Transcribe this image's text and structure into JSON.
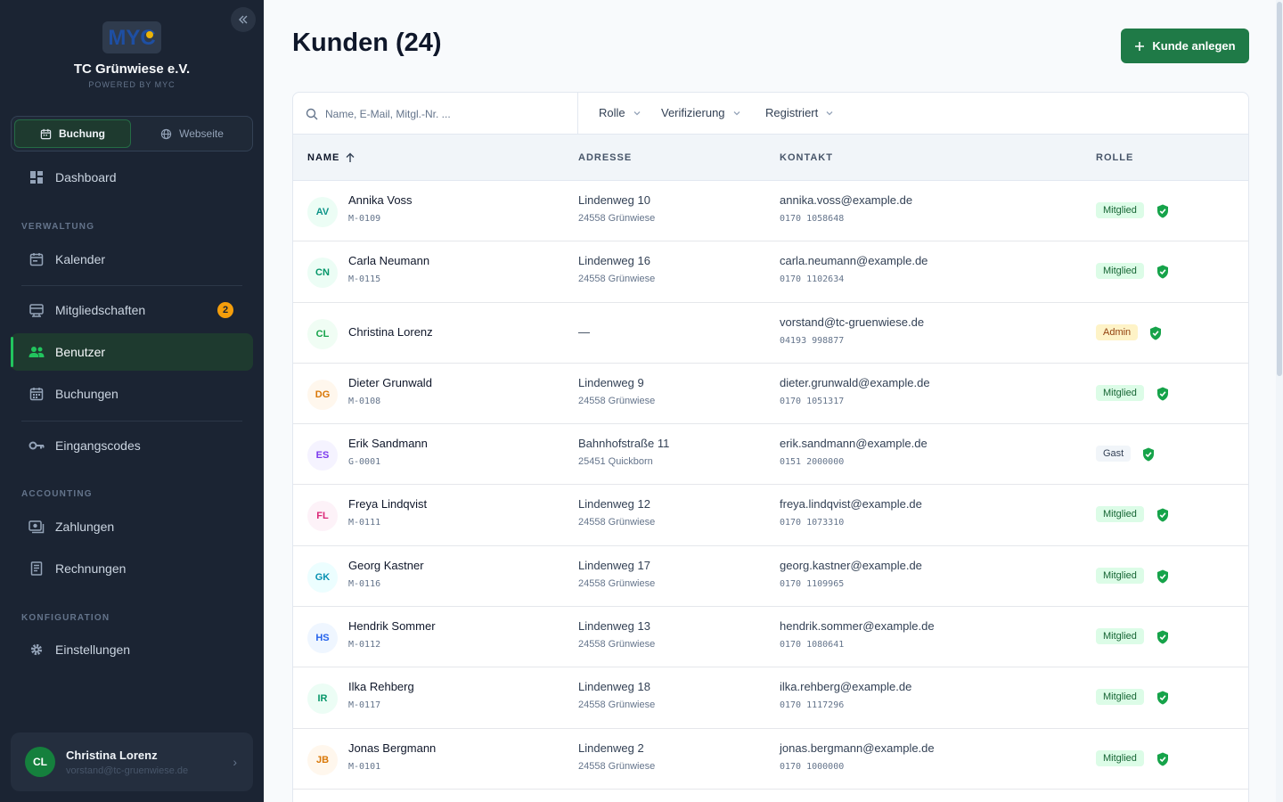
{
  "sidebar": {
    "collapse_icon": "chevrons-left-icon",
    "logo_text": "MYC",
    "club_name": "TC Grünwiese e.V.",
    "powered_by": "POWERED BY MYC",
    "segments": [
      {
        "label": "Buchung",
        "icon": "calendar-icon",
        "active": true
      },
      {
        "label": "Webseite",
        "icon": "globe-icon",
        "active": false
      }
    ],
    "dashboard": "Dashboard",
    "section_verwaltung": "VERWALTUNG",
    "kalender": "Kalender",
    "mitgliedschaften": "Mitgliedschaften",
    "mitgliedschaften_count": "2",
    "benutzer": "Benutzer",
    "buchungen": "Buchungen",
    "eingangscodes": "Eingangscodes",
    "section_accounting": "ACCOUNTING",
    "zahlungen": "Zahlungen",
    "rechnungen": "Rechnungen",
    "section_konfiguration": "KONFIGURATION",
    "einstellungen": "Einstellungen",
    "user": {
      "initials": "CL",
      "name": "Christina Lorenz",
      "email": "vorstand@tc-gruenwiese.de"
    }
  },
  "header": {
    "title": "Kunden (24)",
    "add_button": "Kunde anlegen"
  },
  "filters": {
    "search_placeholder": "Name, E-Mail, Mitgl.-Nr. ...",
    "rolle": "Rolle",
    "verifizierung": "Verifizierung",
    "registriert": "Registriert"
  },
  "table": {
    "columns": {
      "name": "NAME",
      "adresse": "ADRESSE",
      "kontakt": "KONTAKT",
      "rolle": "ROLLE"
    },
    "rows": [
      {
        "initials": "AV",
        "name": "Annika Voss",
        "no": "M-0109",
        "street": "Lindenweg 10",
        "city": "24558 Grünwiese",
        "email": "annika.voss@example.de",
        "phone": "0170 1058648",
        "role": "Mitglied",
        "role_type": "mitglied",
        "color": "#0d9488",
        "bg": "#ecfdf5"
      },
      {
        "initials": "CN",
        "name": "Carla Neumann",
        "no": "M-0115",
        "street": "Lindenweg 16",
        "city": "24558 Grünwiese",
        "email": "carla.neumann@example.de",
        "phone": "0170 1102634",
        "role": "Mitglied",
        "role_type": "mitglied",
        "color": "#059669",
        "bg": "#ecfdf5"
      },
      {
        "initials": "CL",
        "name": "Christina Lorenz",
        "no": "",
        "street": "—",
        "city": "",
        "email": "vorstand@tc-gruenwiese.de",
        "phone": "04193 998877",
        "role": "Admin",
        "role_type": "admin",
        "color": "#16a34a",
        "bg": "#f0fdf4"
      },
      {
        "initials": "DG",
        "name": "Dieter Grunwald",
        "no": "M-0108",
        "street": "Lindenweg 9",
        "city": "24558 Grünwiese",
        "email": "dieter.grunwald@example.de",
        "phone": "0170 1051317",
        "role": "Mitglied",
        "role_type": "mitglied",
        "color": "#d97706",
        "bg": "#fff7ed"
      },
      {
        "initials": "ES",
        "name": "Erik Sandmann",
        "no": "G-0001",
        "street": "Bahnhofstraße 11",
        "city": "25451 Quickborn",
        "email": "erik.sandmann@example.de",
        "phone": "0151 2000000",
        "role": "Gast",
        "role_type": "gast",
        "color": "#7c3aed",
        "bg": "#f5f3ff"
      },
      {
        "initials": "FL",
        "name": "Freya Lindqvist",
        "no": "M-0111",
        "street": "Lindenweg 12",
        "city": "24558 Grünwiese",
        "email": "freya.lindqvist@example.de",
        "phone": "0170 1073310",
        "role": "Mitglied",
        "role_type": "mitglied",
        "color": "#db2777",
        "bg": "#fdf2f8"
      },
      {
        "initials": "GK",
        "name": "Georg Kastner",
        "no": "M-0116",
        "street": "Lindenweg 17",
        "city": "24558 Grünwiese",
        "email": "georg.kastner@example.de",
        "phone": "0170 1109965",
        "role": "Mitglied",
        "role_type": "mitglied",
        "color": "#0891b2",
        "bg": "#ecfeff"
      },
      {
        "initials": "HS",
        "name": "Hendrik Sommer",
        "no": "M-0112",
        "street": "Lindenweg 13",
        "city": "24558 Grünwiese",
        "email": "hendrik.sommer@example.de",
        "phone": "0170 1080641",
        "role": "Mitglied",
        "role_type": "mitglied",
        "color": "#2563eb",
        "bg": "#eff6ff"
      },
      {
        "initials": "IR",
        "name": "Ilka Rehberg",
        "no": "M-0117",
        "street": "Lindenweg 18",
        "city": "24558 Grünwiese",
        "email": "ilka.rehberg@example.de",
        "phone": "0170 1117296",
        "role": "Mitglied",
        "role_type": "mitglied",
        "color": "#059669",
        "bg": "#ecfdf5"
      },
      {
        "initials": "JB",
        "name": "Jonas Bergmann",
        "no": "M-0101",
        "street": "Lindenweg 2",
        "city": "24558 Grünwiese",
        "email": "jonas.bergmann@example.de",
        "phone": "0170 1000000",
        "role": "Mitglied",
        "role_type": "mitglied",
        "color": "#d97706",
        "bg": "#fff7ed"
      }
    ]
  },
  "colors": {
    "accent": "#1f7a47",
    "verified": "#16a34a"
  }
}
